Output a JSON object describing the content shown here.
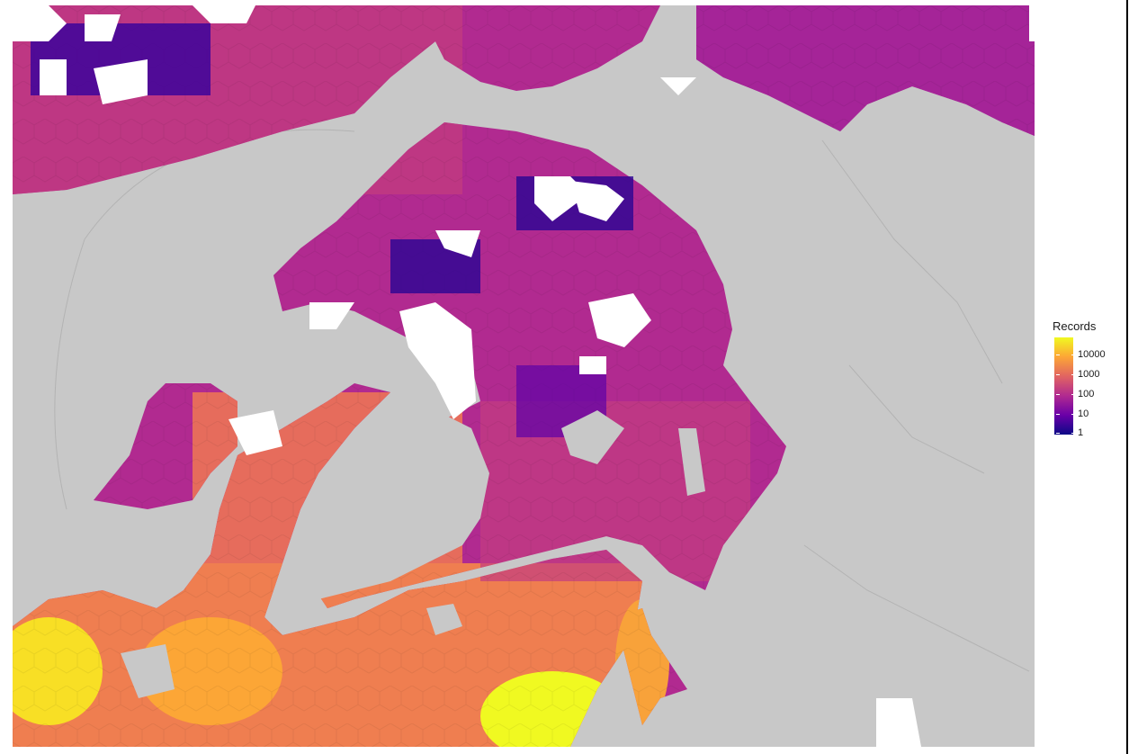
{
  "map": {
    "land_color": "#c8c8c8",
    "nodata_color": "#ffffff",
    "palette": [
      "#0d0887",
      "#6a00a8",
      "#b12a90",
      "#e16462",
      "#fca636",
      "#f0f921"
    ]
  },
  "legend": {
    "title": "Records",
    "scale": "log10",
    "ticks": [
      "10000",
      "1000",
      "100",
      "10",
      "1"
    ]
  }
}
